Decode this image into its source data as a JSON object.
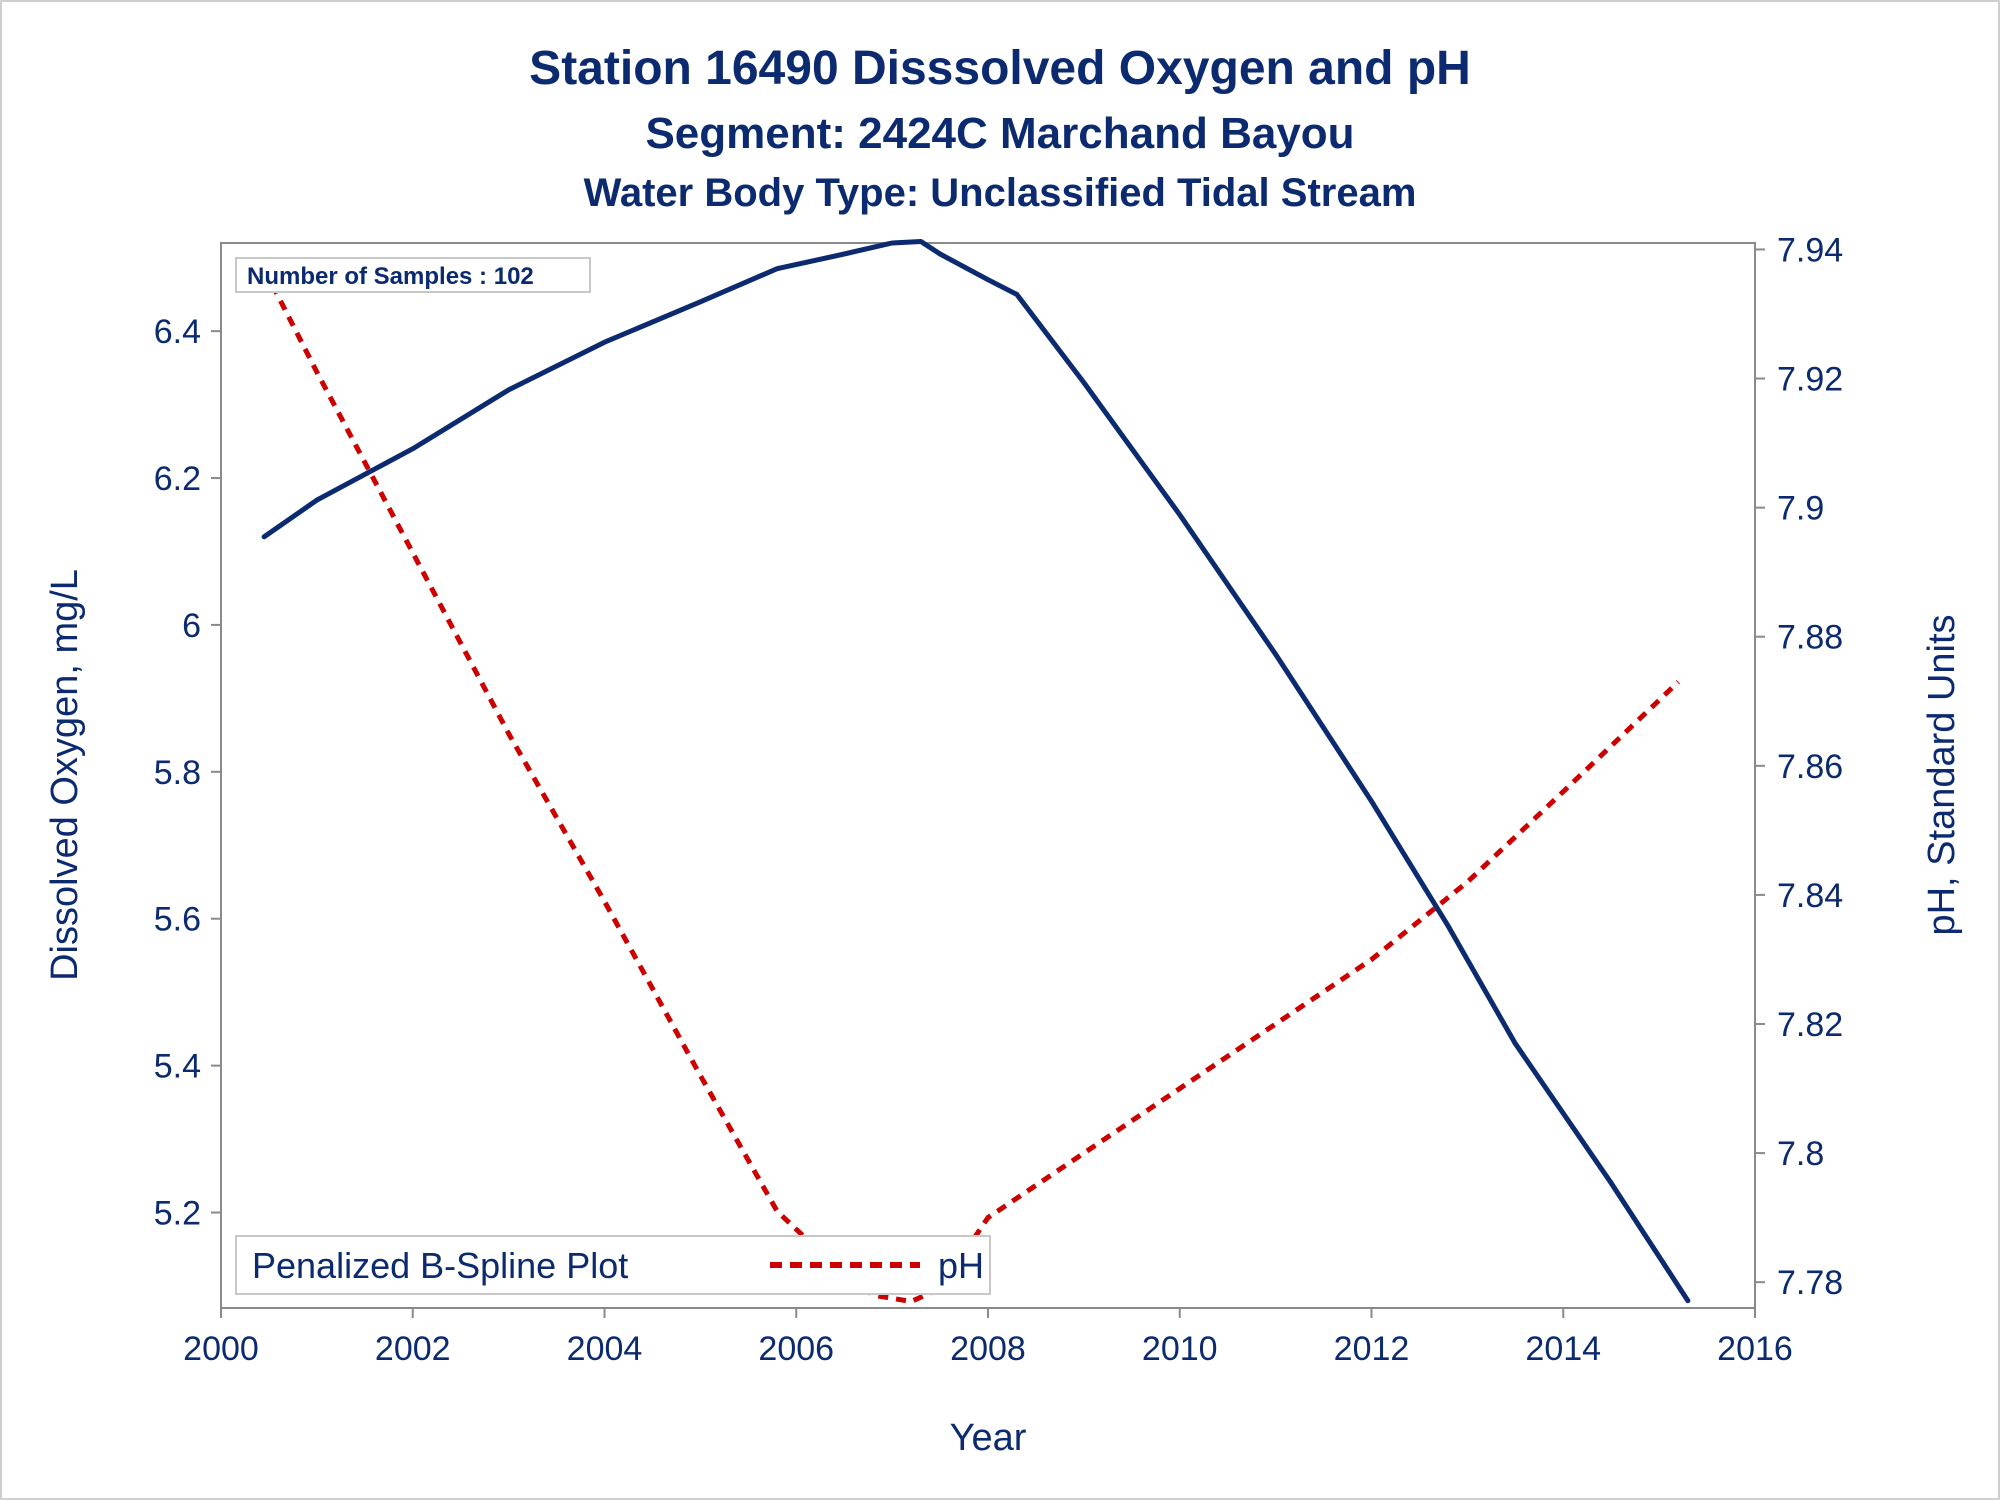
{
  "chart_data": {
    "type": "line",
    "title": "Station 16490   Disssolved Oxygen and pH",
    "subtitle": "Segment: 2424C  Marchand Bayou",
    "subtitle2": "Water Body Type: Unclassified Tidal Stream",
    "xlabel": "Year",
    "ylabel": "Dissolved Oxygen, mg/L",
    "y2label": "pH, Standard Units",
    "xlim": [
      2000,
      2016
    ],
    "ylim": [
      5.07,
      6.52
    ],
    "y2lim": [
      7.776,
      7.941
    ],
    "x_ticks": [
      "2000",
      "2002",
      "2004",
      "2006",
      "2008",
      "2010",
      "2012",
      "2014",
      "2016"
    ],
    "y_ticks": [
      "5.2",
      "5.4",
      "5.6",
      "5.8",
      "6",
      "6.2",
      "6.4"
    ],
    "y2_ticks": [
      "7.78",
      "7.8",
      "7.82",
      "7.84",
      "7.86",
      "7.88",
      "7.9",
      "7.92",
      "7.94"
    ],
    "annotation": "Number of Samples : 102",
    "legend": {
      "title": "Penalized B-Spline Plot",
      "placement": "bottom-left"
    },
    "grid": false,
    "colors": {
      "do_line": "#0b2a6f",
      "ph_line": "#cc0000",
      "text": "#0b2a6f"
    },
    "series": [
      {
        "axis": "left",
        "style": "solid",
        "x": [
          2000.45,
          2001,
          2002,
          2003,
          2004,
          2005,
          2005.8,
          2006.5,
          2007,
          2007.3,
          2007.5,
          2008,
          2008.3,
          2009,
          2010,
          2011,
          2012,
          2012.8,
          2013.5,
          2014.5,
          2015.3
        ],
        "values": [
          6.12,
          6.17,
          6.24,
          6.32,
          6.385,
          6.44,
          6.485,
          6.505,
          6.52,
          6.522,
          6.505,
          6.47,
          6.45,
          6.33,
          6.15,
          5.96,
          5.76,
          5.59,
          5.43,
          5.24,
          5.08
        ]
      },
      {
        "name": "pH",
        "axis": "right",
        "style": "dashed",
        "x": [
          2000.45,
          2001,
          2002,
          2003,
          2004,
          2005,
          2005.8,
          2006.3,
          2006.8,
          2007.2,
          2007.5,
          2008,
          2009,
          2010,
          2011,
          2012,
          2013,
          2014,
          2015.2
        ],
        "values": [
          7.937,
          7.921,
          7.893,
          7.865,
          7.839,
          7.812,
          7.791,
          7.784,
          7.778,
          7.777,
          7.779,
          7.79,
          7.8,
          7.81,
          7.82,
          7.83,
          7.842,
          7.856,
          7.873
        ]
      }
    ]
  }
}
